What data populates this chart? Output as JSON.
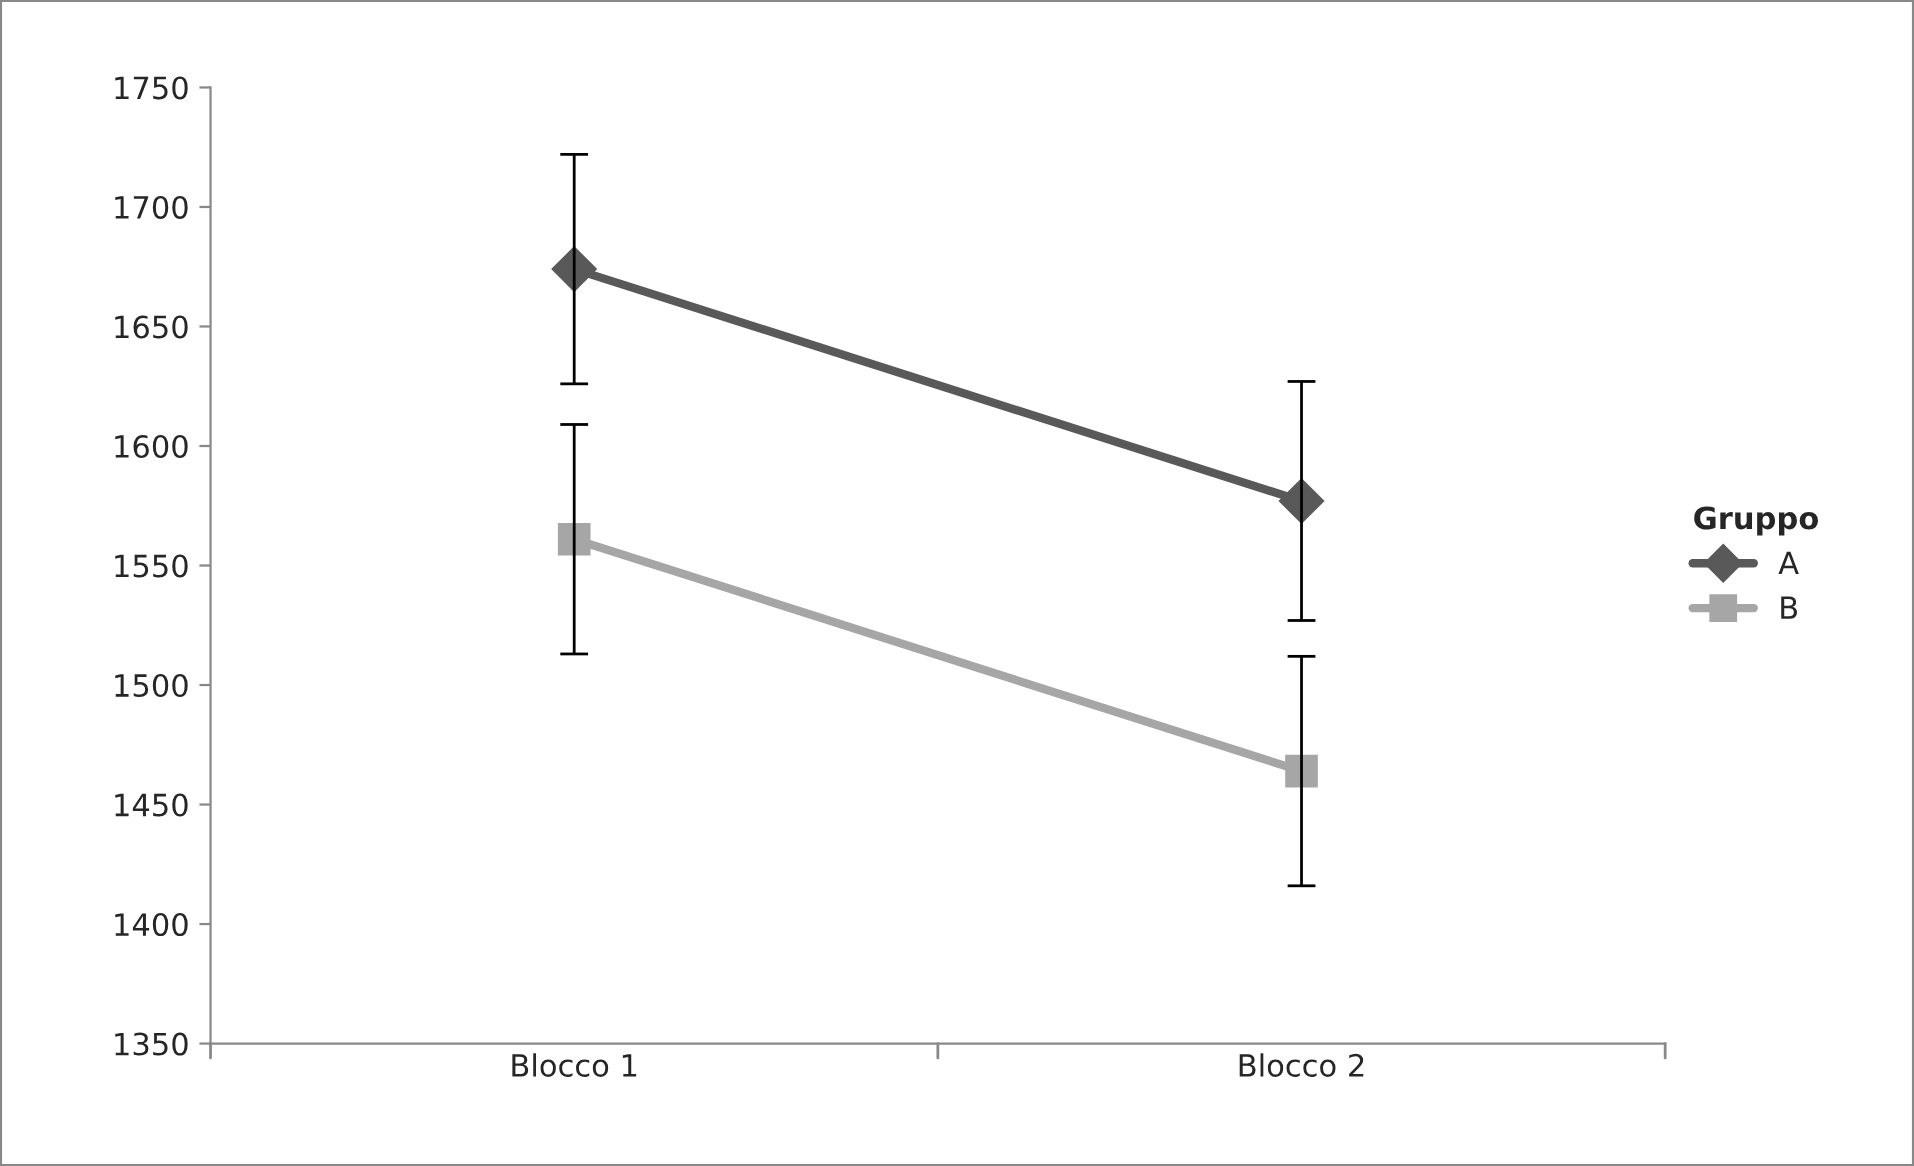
{
  "chart_data": {
    "type": "line",
    "categories": [
      "Blocco 1",
      "Blocco 2"
    ],
    "series": [
      {
        "name": "A",
        "color": "#595959",
        "marker": "diamond",
        "values": [
          1674,
          1577
        ],
        "errors": [
          48,
          50
        ]
      },
      {
        "name": "B",
        "color": "#a6a6a6",
        "marker": "square",
        "values": [
          1561,
          1464
        ],
        "errors": [
          48,
          48
        ]
      }
    ],
    "ylim": [
      1350,
      1750
    ],
    "yticks": [
      1350,
      1400,
      1450,
      1500,
      1550,
      1600,
      1650,
      1700,
      1750
    ],
    "legend": "right",
    "legend_title": "Gruppo",
    "grid": false,
    "line_style": "solid"
  }
}
